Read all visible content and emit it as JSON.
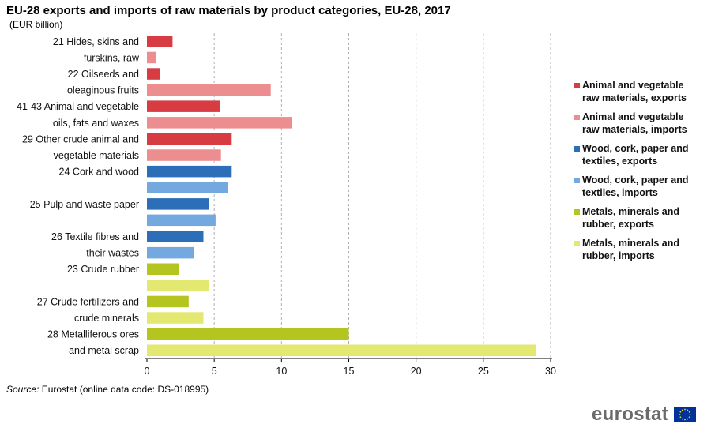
{
  "title": "EU-28 exports and imports of raw materials by product categories, EU-28, 2017",
  "subtitle": "(EUR billion)",
  "source_label": "Source:",
  "source_text": "Eurostat (online data code: DS-018995)",
  "brand": "eurostat",
  "chart_data": {
    "type": "bar",
    "orientation": "horizontal",
    "title": "EU-28 exports and imports of raw materials by product categories, EU-28, 2017",
    "unit": "(EUR billion)",
    "categories": [
      "21 Hides, skins and",
      "furskins, raw",
      "22 Oilseeds and",
      "oleaginous fruits",
      "41-43 Animal and vegetable",
      "oils, fats and waxes",
      "29 Other crude animal and",
      "vegetable materials",
      "24 Cork and wood",
      "",
      "25 Pulp and waste paper",
      "",
      "26 Textile fibres and",
      "their wastes",
      "23 Crude rubber",
      "",
      "27 Crude fertilizers and",
      "crude minerals",
      "28 Metalliferous ores",
      "and metal scrap"
    ],
    "values": [
      1.9,
      0.7,
      1.0,
      9.2,
      5.4,
      10.8,
      6.3,
      5.5,
      6.3,
      6.0,
      4.6,
      5.1,
      4.2,
      3.5,
      2.4,
      4.6,
      3.1,
      4.2,
      15.0,
      28.9
    ],
    "bar_series": [
      0,
      1,
      0,
      1,
      0,
      1,
      0,
      1,
      2,
      3,
      2,
      3,
      2,
      3,
      4,
      5,
      4,
      5,
      4,
      5
    ],
    "xlim": [
      0,
      30
    ],
    "xticks": [
      0,
      5,
      10,
      15,
      20,
      25,
      30
    ],
    "grid": "vertical dashed",
    "legend_position": "right",
    "series": [
      {
        "name": "Animal and vegetable raw materials, exports",
        "lines": [
          "Animal and vegetable",
          "raw materials, exports"
        ],
        "color": "#D73C43"
      },
      {
        "name": "Animal and vegetable raw materials, imports",
        "lines": [
          "Animal and vegetable",
          "raw materials, imports"
        ],
        "color": "#EC8D8F"
      },
      {
        "name": "Wood, cork, paper and textiles, exports",
        "lines": [
          "Wood, cork, paper and",
          "textiles, exports"
        ],
        "color": "#2C6FB8"
      },
      {
        "name": "Wood, cork, paper and textiles, imports",
        "lines": [
          "Wood, cork, paper and",
          "textiles, imports"
        ],
        "color": "#73A9DF"
      },
      {
        "name": "Metals, minerals and rubber, exports",
        "lines": [
          "Metals, minerals and",
          "rubber, exports"
        ],
        "color": "#B5C520"
      },
      {
        "name": "Metals, minerals and rubber, imports",
        "lines": [
          "Metals, minerals and",
          "rubber, imports"
        ],
        "color": "#E3E870"
      }
    ]
  }
}
